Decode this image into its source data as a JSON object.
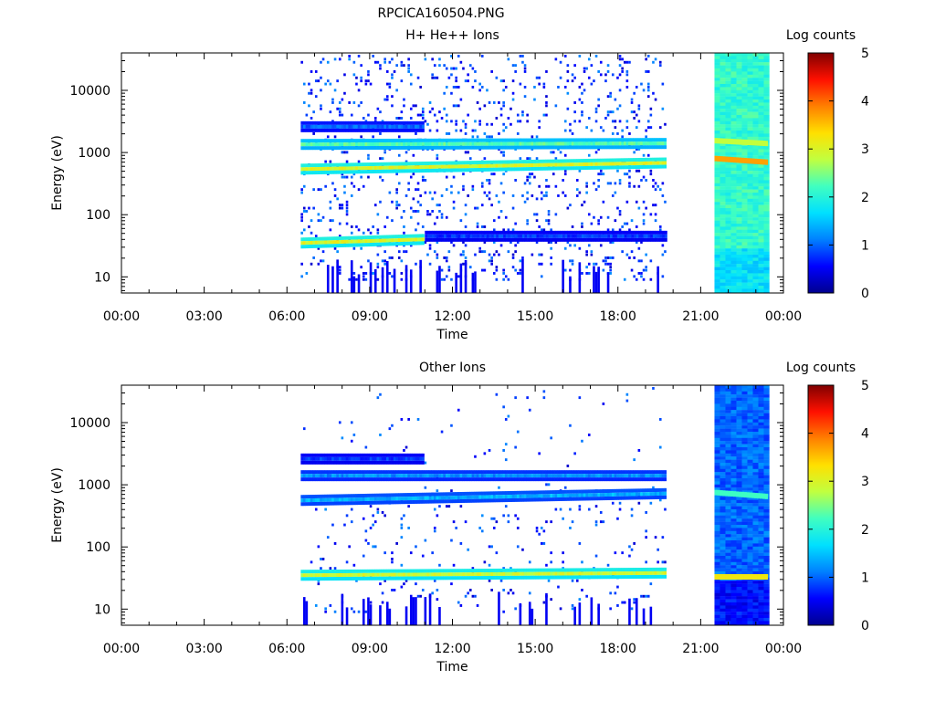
{
  "figure_title": "RPCICA160504.PNG",
  "colorbar_palette": [
    "#00008f",
    "#0000ff",
    "#0080ff",
    "#00e0ff",
    "#40ffc0",
    "#c0ff40",
    "#ffe000",
    "#ff8000",
    "#ff1000",
    "#800000"
  ],
  "chart_data": [
    {
      "type": "heatmap",
      "title": "H+ He++ Ions",
      "xlabel": "Time",
      "ylabel": "Energy (eV)",
      "xlim": [
        "00:00",
        "24:00"
      ],
      "x_ticks": [
        "00:00",
        "03:00",
        "06:00",
        "09:00",
        "12:00",
        "15:00",
        "18:00",
        "21:00",
        "00:00"
      ],
      "y_scale": "log",
      "ylim": [
        5.5,
        40000
      ],
      "y_ticks": [
        "10",
        "100",
        "1000",
        "10000"
      ],
      "colorbar": {
        "label": "Log counts",
        "range": [
          0,
          5
        ],
        "ticks": [
          "0",
          "1",
          "2",
          "3",
          "4",
          "5"
        ]
      },
      "data_intervals": [
        {
          "start": "06:30",
          "end": "19:45",
          "mode": "sparse"
        },
        {
          "start": "21:30",
          "end": "23:20",
          "mode": "dense"
        }
      ],
      "bands_sparse": [
        {
          "energy_start_ev": 540,
          "energy_end_ev": 680,
          "t_start": "06:30",
          "t_end": "19:45",
          "level": 3.0
        },
        {
          "energy_start_ev": 1350,
          "energy_end_ev": 1400,
          "t_start": "06:30",
          "t_end": "19:45",
          "level": 2.3
        },
        {
          "energy_start_ev": 2600,
          "energy_end_ev": 2600,
          "t_start": "06:30",
          "t_end": "11:00",
          "level": 1.0
        },
        {
          "energy_start_ev": 35,
          "energy_end_ev": 40,
          "t_start": "06:30",
          "t_end": "11:00",
          "level": 3.0
        },
        {
          "energy_start_ev": 45,
          "energy_end_ev": 45,
          "t_start": "11:00",
          "t_end": "19:45",
          "level": 0.8
        }
      ],
      "dense_background_level": 2.1,
      "bands_dense": [
        {
          "energy_start_ev": 800,
          "energy_end_ev": 700,
          "level": 3.7
        },
        {
          "energy_start_ev": 1550,
          "energy_end_ev": 1400,
          "level": 2.8
        }
      ]
    },
    {
      "type": "heatmap",
      "title": "Other Ions",
      "xlabel": "Time",
      "ylabel": "Energy (eV)",
      "xlim": [
        "00:00",
        "24:00"
      ],
      "x_ticks": [
        "00:00",
        "03:00",
        "06:00",
        "09:00",
        "12:00",
        "15:00",
        "18:00",
        "21:00",
        "00:00"
      ],
      "y_scale": "log",
      "ylim": [
        5.5,
        40000
      ],
      "y_ticks": [
        "10",
        "100",
        "1000",
        "10000"
      ],
      "colorbar": {
        "label": "Log counts",
        "range": [
          0,
          5
        ],
        "ticks": [
          "0",
          "1",
          "2",
          "3",
          "4",
          "5"
        ]
      },
      "data_intervals": [
        {
          "start": "06:30",
          "end": "19:45",
          "mode": "sparse"
        },
        {
          "start": "21:30",
          "end": "23:20",
          "mode": "dense"
        }
      ],
      "bands_sparse": [
        {
          "energy_start_ev": 35,
          "energy_end_ev": 38,
          "t_start": "06:30",
          "t_end": "19:45",
          "level": 2.9
        },
        {
          "energy_start_ev": 560,
          "energy_end_ev": 720,
          "t_start": "06:30",
          "t_end": "19:45",
          "level": 1.4
        },
        {
          "energy_start_ev": 1400,
          "energy_end_ev": 1400,
          "t_start": "06:30",
          "t_end": "19:45",
          "level": 1.2
        },
        {
          "energy_start_ev": 2600,
          "energy_end_ev": 2600,
          "t_start": "06:30",
          "t_end": "11:00",
          "level": 0.8
        }
      ],
      "dense_background_level": 1.0,
      "bands_dense": [
        {
          "energy_start_ev": 750,
          "energy_end_ev": 650,
          "level": 2.2
        },
        {
          "energy_start_ev": 33,
          "energy_end_ev": 33,
          "level": 3.2
        }
      ]
    }
  ]
}
